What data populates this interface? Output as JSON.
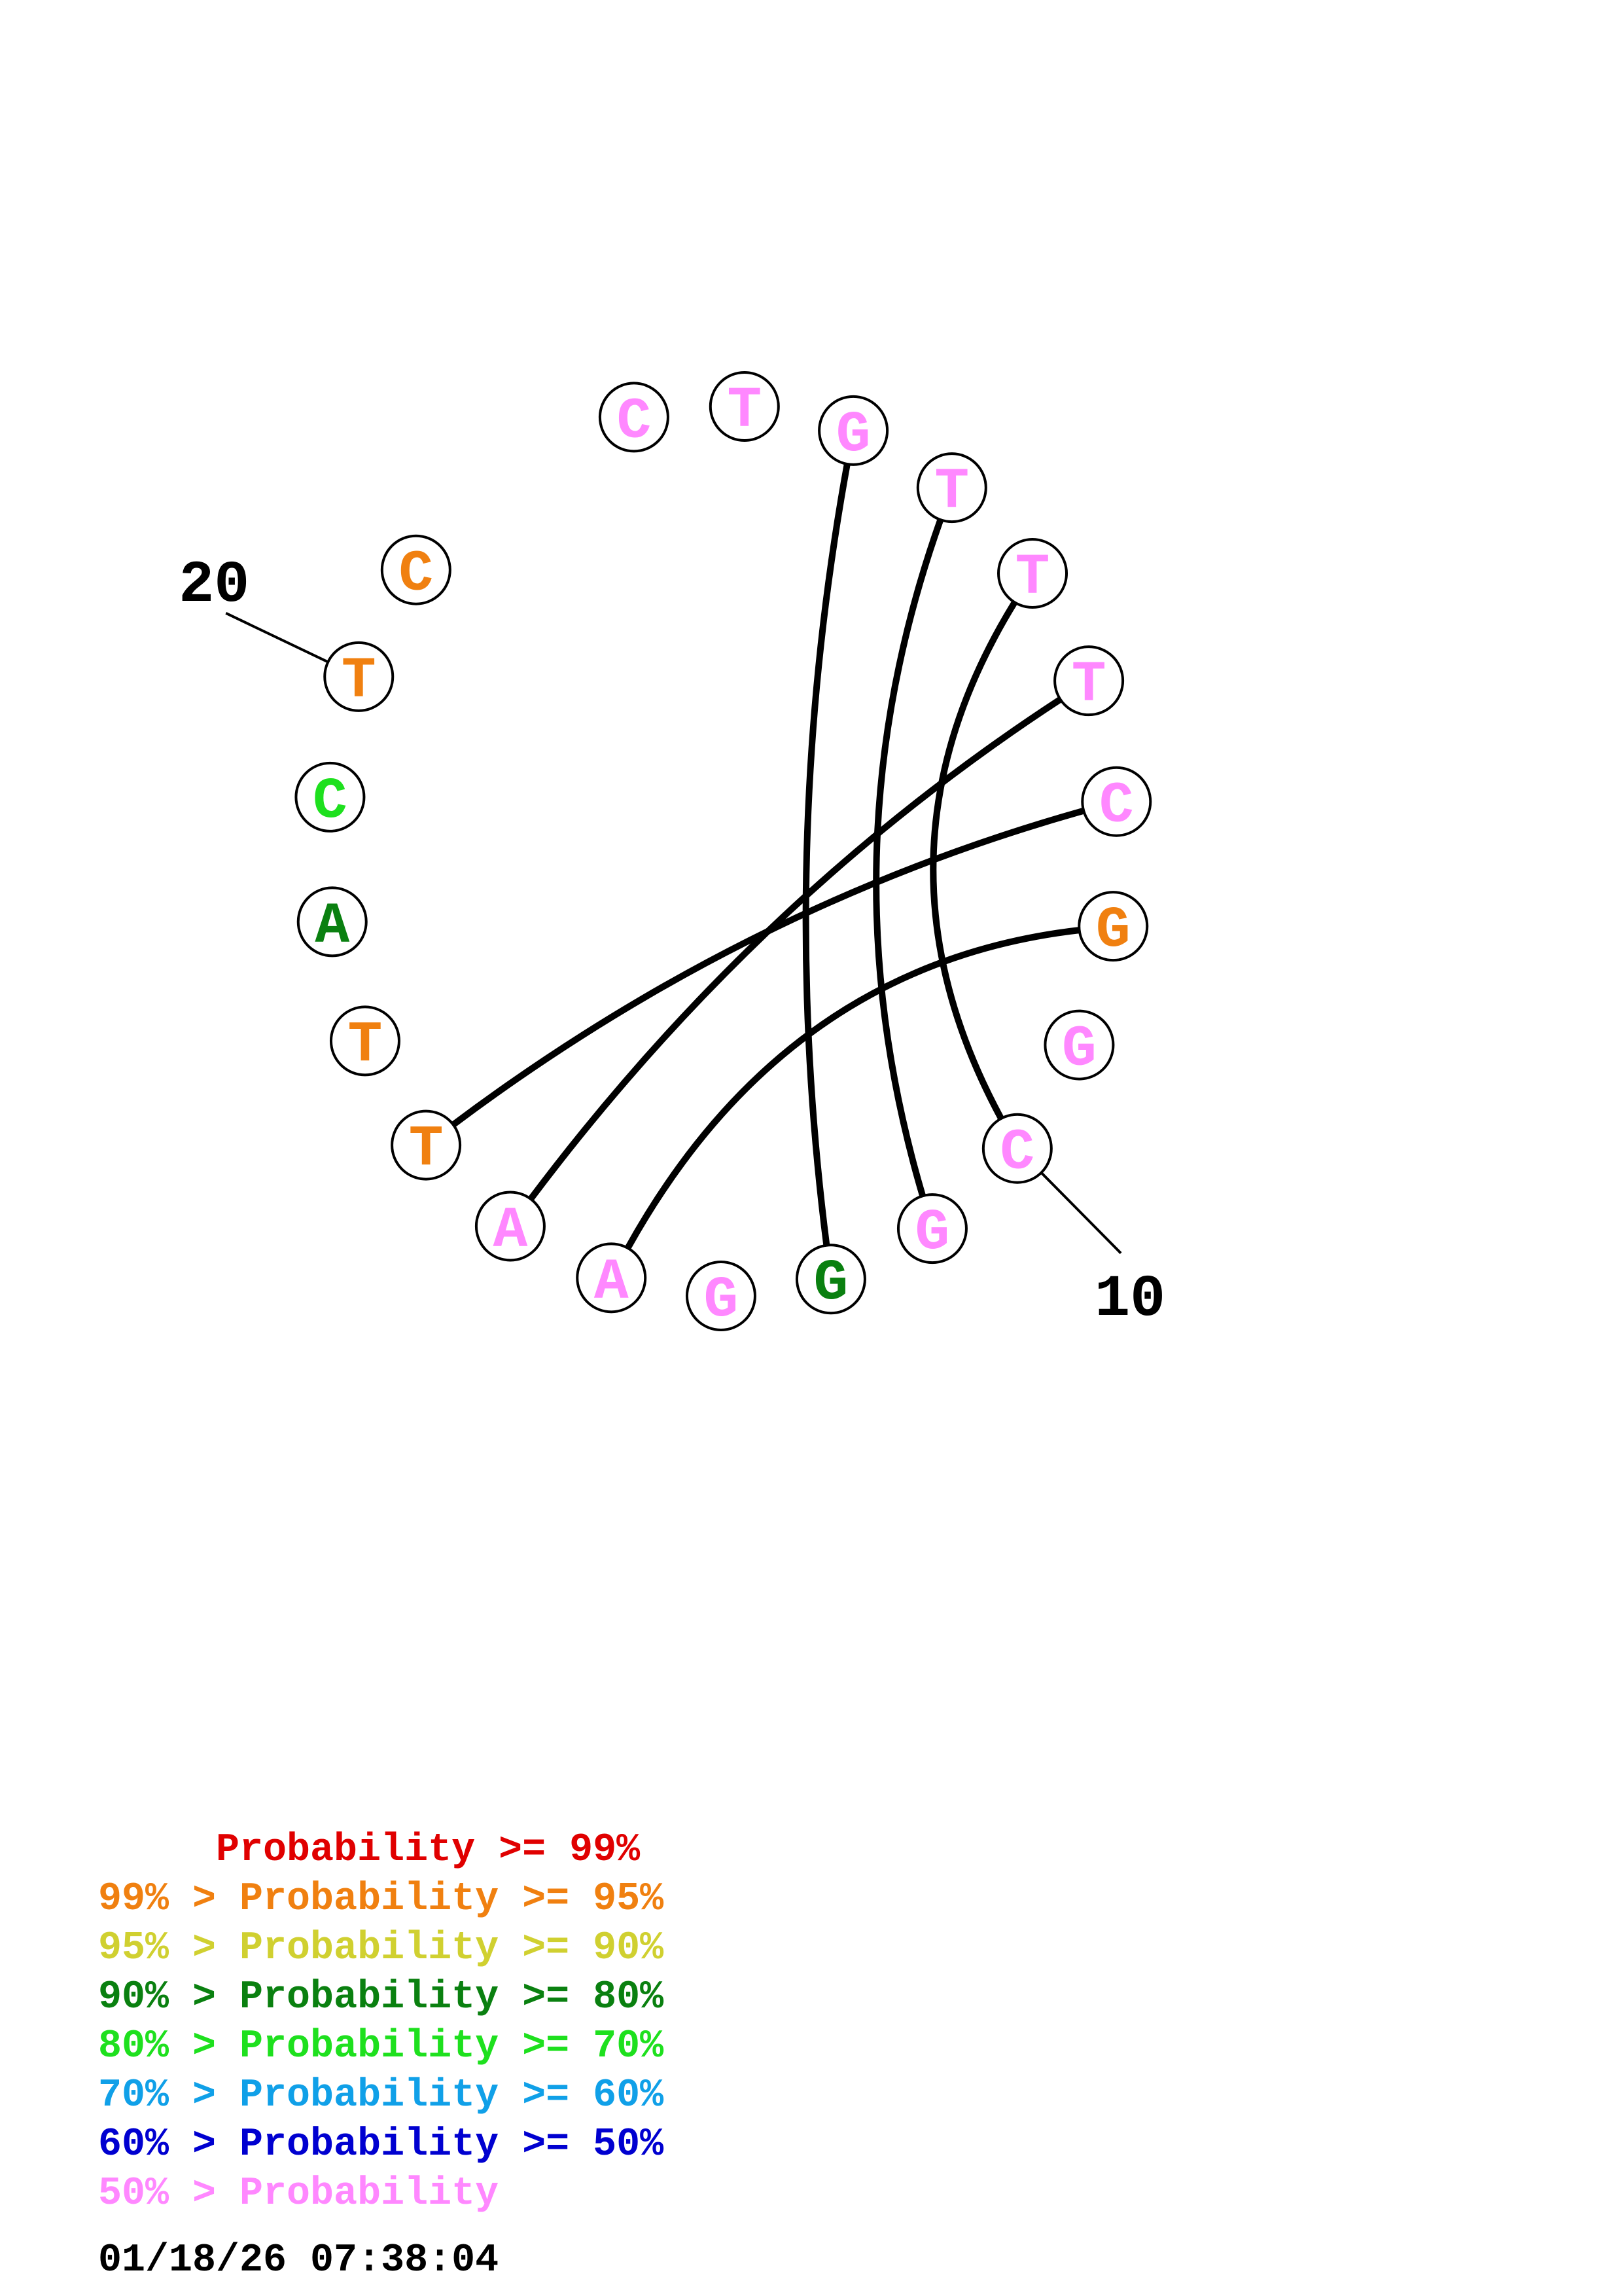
{
  "diagram": {
    "bases": [
      {
        "letter": "C",
        "color": "#ff88ff"
      },
      {
        "letter": "T",
        "color": "#ff88ff"
      },
      {
        "letter": "G",
        "color": "#ff88ff"
      },
      {
        "letter": "T",
        "color": "#ff88ff"
      },
      {
        "letter": "T",
        "color": "#ff88ff"
      },
      {
        "letter": "T",
        "color": "#ff88ff"
      },
      {
        "letter": "C",
        "color": "#ff88ff"
      },
      {
        "letter": "G",
        "color": "#f08010"
      },
      {
        "letter": "G",
        "color": "#ff88ff"
      },
      {
        "letter": "C",
        "color": "#ff88ff"
      },
      {
        "letter": "G",
        "color": "#ff88ff"
      },
      {
        "letter": "G",
        "color": "#0a8010"
      },
      {
        "letter": "G",
        "color": "#ff88ff"
      },
      {
        "letter": "A",
        "color": "#ff88ff"
      },
      {
        "letter": "A",
        "color": "#ff88ff"
      },
      {
        "letter": "T",
        "color": "#f08010"
      },
      {
        "letter": "T",
        "color": "#f08010"
      },
      {
        "letter": "A",
        "color": "#0a8010"
      },
      {
        "letter": "C",
        "color": "#1ee01e"
      },
      {
        "letter": "T",
        "color": "#f08010"
      },
      {
        "letter": "C",
        "color": "#f08010"
      }
    ],
    "pairs": [
      [
        2,
        11
      ],
      [
        3,
        10
      ],
      [
        4,
        9
      ],
      [
        5,
        14
      ],
      [
        6,
        15
      ],
      [
        7,
        13
      ]
    ],
    "position_labels": [
      {
        "label": "20",
        "base": 20
      },
      {
        "label": "10",
        "base": 10
      }
    ]
  },
  "legend": [
    {
      "text": "     Probability >= 99%",
      "color": "#e00000"
    },
    {
      "text": "99% > Probability >= 95%",
      "color": "#f08010"
    },
    {
      "text": "95% > Probability >= 90%",
      "color": "#d0d030"
    },
    {
      "text": "90% > Probability >= 80%",
      "color": "#0a8010"
    },
    {
      "text": "80% > Probability >= 70%",
      "color": "#1ee01e"
    },
    {
      "text": "70% > Probability >= 60%",
      "color": "#10a0e8"
    },
    {
      "text": "60% > Probability >= 50%",
      "color": "#0000d0"
    },
    {
      "text": "50% > Probability",
      "color": "#ff88ff"
    }
  ],
  "timestamp": "01/18/26 07:38:04"
}
